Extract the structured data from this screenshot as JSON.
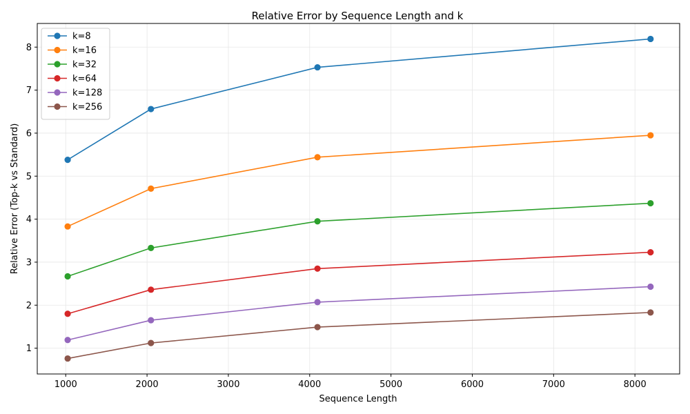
{
  "chart_data": {
    "type": "line",
    "title": "Relative Error by Sequence Length and k",
    "xlabel": "Sequence Length",
    "ylabel": "Relative Error (Top-k vs Standard)",
    "x": [
      1024,
      2048,
      4096,
      8192
    ],
    "xlim": [
      650,
      8550
    ],
    "ylim": [
      0.4,
      8.55
    ],
    "xticks": [
      1000,
      2000,
      3000,
      4000,
      5000,
      6000,
      7000,
      8000
    ],
    "yticks": [
      1,
      2,
      3,
      4,
      5,
      6,
      7,
      8
    ],
    "grid": true,
    "legend_position": "top-left",
    "series": [
      {
        "name": "k=8",
        "color": "#1f77b4",
        "values": [
          5.38,
          6.56,
          7.53,
          8.19
        ]
      },
      {
        "name": "k=16",
        "color": "#ff7f0e",
        "values": [
          3.83,
          4.71,
          5.44,
          5.95
        ]
      },
      {
        "name": "k=32",
        "color": "#2ca02c",
        "values": [
          2.67,
          3.33,
          3.95,
          4.37
        ]
      },
      {
        "name": "k=64",
        "color": "#d62728",
        "values": [
          1.8,
          2.36,
          2.85,
          3.23
        ]
      },
      {
        "name": "k=128",
        "color": "#9467bd",
        "values": [
          1.19,
          1.65,
          2.07,
          2.43
        ]
      },
      {
        "name": "k=256",
        "color": "#8c564b",
        "values": [
          0.76,
          1.12,
          1.49,
          1.83
        ]
      }
    ]
  }
}
